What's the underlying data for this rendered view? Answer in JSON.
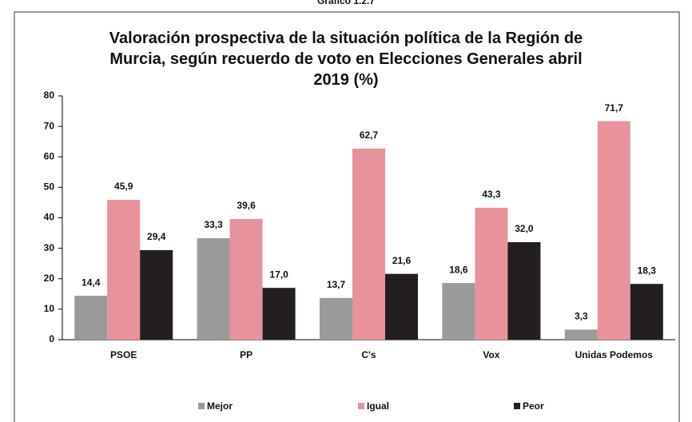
{
  "chart_data": {
    "type": "bar",
    "header": "Gráfico 1.2.7",
    "title": "Valoración prospectiva de la situación política de la Región de Murcia, según recuerdo de voto en Elecciones Generales abril 2019 (%)",
    "categories": [
      "PSOE",
      "PP",
      "C's",
      "Vox",
      "Unidas Podemos"
    ],
    "series": [
      {
        "name": "Mejor",
        "color": "#9a9a9a",
        "values": [
          14.4,
          33.3,
          13.7,
          18.6,
          3.3
        ],
        "value_labels": [
          "14,4",
          "33,3",
          "13,7",
          "18,6",
          "3,3"
        ]
      },
      {
        "name": "Igual",
        "color": "#e8929b",
        "values": [
          45.9,
          39.6,
          62.7,
          43.3,
          71.7
        ],
        "value_labels": [
          "45,9",
          "39,6",
          "62,7",
          "43,3",
          "71,7"
        ]
      },
      {
        "name": "Peor",
        "color": "#231f20",
        "values": [
          29.4,
          17.0,
          21.6,
          32.0,
          18.3
        ],
        "value_labels": [
          "29,4",
          "17,0",
          "21,6",
          "32,0",
          "18,3"
        ]
      }
    ],
    "ylim": [
      0,
      80
    ],
    "yticks": [
      0,
      10,
      20,
      30,
      40,
      50,
      60,
      70,
      80
    ],
    "legend": "bottom"
  }
}
